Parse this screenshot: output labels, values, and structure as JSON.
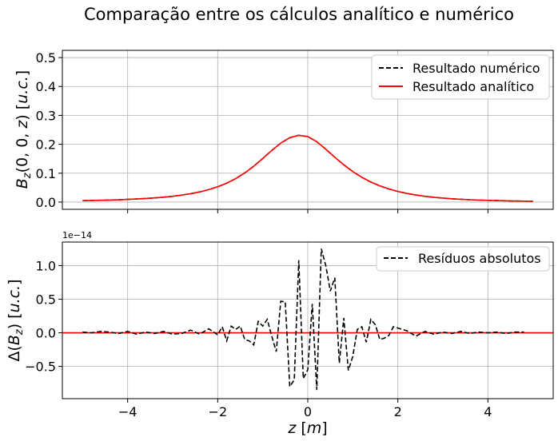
{
  "figure": {
    "title": "Comparação entre os cálculos analítico e numérico"
  },
  "chart_data": [
    {
      "type": "line",
      "panel": "top",
      "ylabel_math": [
        "B",
        "z",
        "(0, 0, ",
        "z",
        ") [",
        "u.c.",
        "]"
      ],
      "xlim": [
        -5.45,
        5.45
      ],
      "ylim": [
        -0.025,
        0.525
      ],
      "xticks": [],
      "yticks": [
        0.0,
        0.1,
        0.2,
        0.3,
        0.4,
        0.5
      ],
      "ytick_labels": [
        "0.0",
        "0.1",
        "0.2",
        "0.3",
        "0.4",
        "0.5"
      ],
      "grid": true,
      "legend_position": "top-right",
      "legend": [
        "Resultado numérico",
        "Resultado analítico"
      ],
      "series_styles": [
        {
          "color": "#000000",
          "dash": "dashed"
        },
        {
          "color": "#ff0000",
          "dash": "solid"
        }
      ],
      "x": [
        -5.0,
        -4.8,
        -4.6,
        -4.4,
        -4.2,
        -4.0,
        -3.8,
        -3.6,
        -3.4,
        -3.2,
        -3.0,
        -2.8,
        -2.6,
        -2.4,
        -2.2,
        -2.0,
        -1.8,
        -1.6,
        -1.4,
        -1.2,
        -1.0,
        -0.8,
        -0.6,
        -0.4,
        -0.2,
        0.0,
        0.2,
        0.4,
        0.6,
        0.8,
        1.0,
        1.2,
        1.4,
        1.6,
        1.8,
        2.0,
        2.2,
        2.4,
        2.6,
        2.8,
        3.0,
        3.2,
        3.4,
        3.6,
        3.8,
        4.0,
        4.2,
        4.4,
        4.6,
        4.8,
        5.0
      ],
      "series": [
        {
          "values": [
            0.0049,
            0.0055,
            0.0063,
            0.0071,
            0.0081,
            0.0093,
            0.0107,
            0.0124,
            0.0145,
            0.017,
            0.0202,
            0.0241,
            0.029,
            0.0352,
            0.0431,
            0.053,
            0.0656,
            0.0813,
            0.1008,
            0.1241,
            0.1508,
            0.1786,
            0.2041,
            0.2227,
            0.2311,
            0.2267,
            0.2089,
            0.1829,
            0.1552,
            0.1289,
            0.1056,
            0.0858,
            0.0694,
            0.0561,
            0.0454,
            0.0368,
            0.03,
            0.0245,
            0.0201,
            0.0166,
            0.0138,
            0.0115,
            0.0097,
            0.0082,
            0.0069,
            0.0059,
            0.0051,
            0.0044,
            0.0038,
            0.0033,
            0.0029
          ]
        },
        {
          "values": [
            0.0049,
            0.0055,
            0.0063,
            0.0071,
            0.0081,
            0.0093,
            0.0107,
            0.0124,
            0.0145,
            0.017,
            0.0202,
            0.0241,
            0.029,
            0.0352,
            0.0431,
            0.053,
            0.0656,
            0.0813,
            0.1008,
            0.1241,
            0.1508,
            0.1786,
            0.2041,
            0.2227,
            0.2311,
            0.2267,
            0.2089,
            0.1829,
            0.1552,
            0.1289,
            0.1056,
            0.0858,
            0.0694,
            0.0561,
            0.0454,
            0.0368,
            0.03,
            0.0245,
            0.0201,
            0.0166,
            0.0138,
            0.0115,
            0.0097,
            0.0082,
            0.0069,
            0.0059,
            0.0051,
            0.0044,
            0.0038,
            0.0033,
            0.0029
          ]
        }
      ]
    },
    {
      "type": "line",
      "panel": "bottom",
      "xlabel_math": [
        "z",
        " [",
        "m",
        "]"
      ],
      "ylabel_math": [
        "Δ(",
        "B",
        "z",
        ") [",
        "u.c.",
        "]"
      ],
      "offset_text": "1e−14",
      "xlim": [
        -5.45,
        5.45
      ],
      "ylim": [
        -0.98,
        1.35
      ],
      "xticks": [
        -4,
        -2,
        0,
        2,
        4
      ],
      "xtick_labels": [
        "−4",
        "−2",
        "0",
        "2",
        "4"
      ],
      "yticks": [
        -0.5,
        0.0,
        0.5,
        1.0
      ],
      "ytick_labels": [
        "−0.5",
        "0.0",
        "0.5",
        "1.0"
      ],
      "grid": true,
      "legend_position": "top-right",
      "legend": [
        "Resíduos absolutos"
      ],
      "hline": {
        "y": 0.0,
        "color": "#ff0000"
      },
      "series_styles": [
        {
          "color": "#000000",
          "dash": "dashed"
        }
      ],
      "x": [
        -5.0,
        -4.8,
        -4.6,
        -4.4,
        -4.2,
        -4.0,
        -3.8,
        -3.6,
        -3.4,
        -3.2,
        -3.0,
        -2.8,
        -2.6,
        -2.4,
        -2.2,
        -2.0,
        -1.9,
        -1.8,
        -1.7,
        -1.6,
        -1.5,
        -1.4,
        -1.3,
        -1.2,
        -1.1,
        -1.0,
        -0.9,
        -0.8,
        -0.7,
        -0.6,
        -0.5,
        -0.4,
        -0.3,
        -0.2,
        -0.1,
        0.0,
        0.1,
        0.2,
        0.3,
        0.4,
        0.5,
        0.6,
        0.7,
        0.8,
        0.9,
        1.0,
        1.1,
        1.2,
        1.3,
        1.4,
        1.5,
        1.6,
        1.7,
        1.8,
        1.9,
        2.0,
        2.2,
        2.4,
        2.6,
        2.8,
        3.0,
        3.2,
        3.4,
        3.6,
        3.8,
        4.0,
        4.2,
        4.4,
        4.6,
        4.8
      ],
      "series": [
        {
          "values": [
            0.01,
            0.0,
            0.02,
            0.01,
            -0.01,
            0.02,
            -0.02,
            0.01,
            -0.01,
            0.02,
            -0.02,
            -0.01,
            0.04,
            -0.02,
            0.06,
            -0.03,
            0.09,
            -0.12,
            0.1,
            0.05,
            0.1,
            -0.1,
            -0.12,
            -0.18,
            0.17,
            0.1,
            0.2,
            -0.05,
            -0.28,
            0.47,
            0.46,
            -0.8,
            -0.7,
            1.08,
            -0.68,
            -0.55,
            0.43,
            -0.85,
            1.25,
            1.0,
            0.62,
            0.82,
            -0.45,
            0.22,
            -0.56,
            -0.35,
            0.05,
            0.09,
            -0.14,
            0.2,
            0.12,
            -0.1,
            -0.08,
            -0.04,
            0.09,
            0.07,
            0.03,
            -0.05,
            0.02,
            -0.02,
            0.01,
            -0.01,
            0.02,
            -0.01,
            0.01,
            0.0,
            0.01,
            -0.01,
            0.01,
            0.01
          ]
        }
      ]
    }
  ]
}
